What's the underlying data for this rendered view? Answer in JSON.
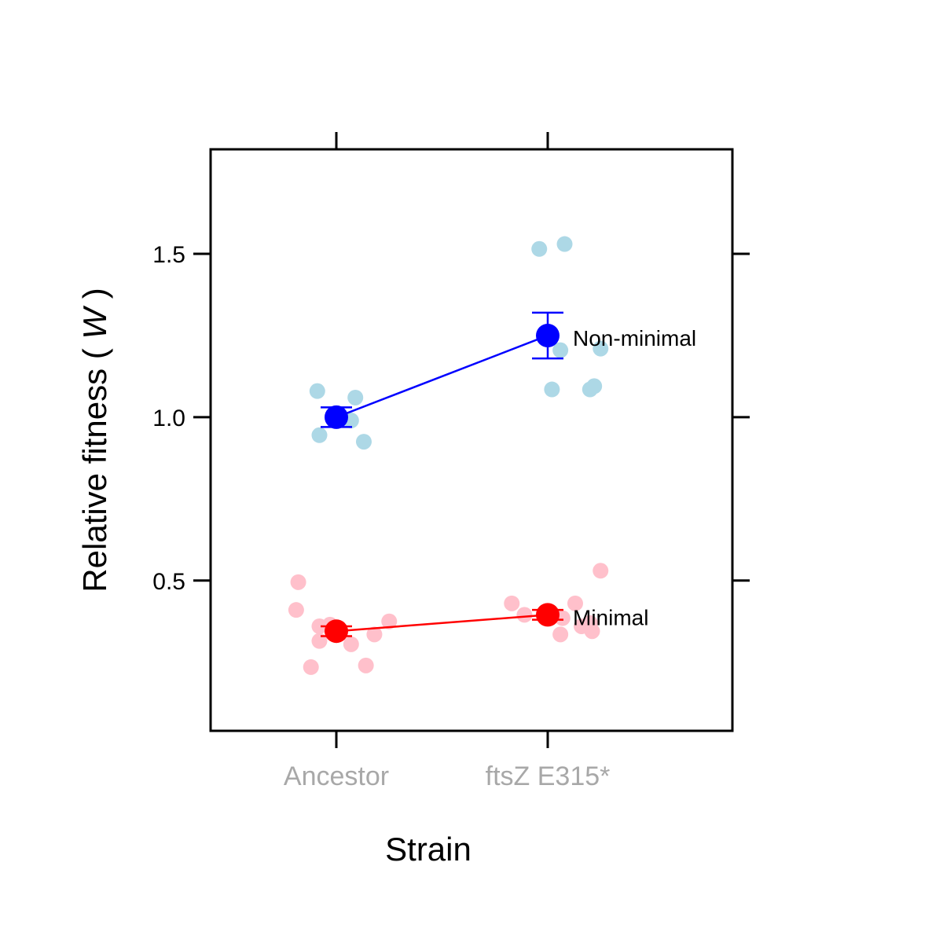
{
  "chart_data": {
    "type": "scatter",
    "xlabel": "Strain",
    "ylabel": {
      "prefix": "Relative fitness ( ",
      "symbol": "W",
      "suffix": " )"
    },
    "categories": [
      "Ancestor",
      "ftsZ E315*"
    ],
    "ylim": [
      0.04,
      1.82
    ],
    "yticks": [
      0.5,
      1.0,
      1.5
    ],
    "ytick_labels": [
      "0.5",
      "1.0",
      "1.5"
    ],
    "grid": false,
    "series": [
      {
        "name": "Non-minimal",
        "color": "#0000ff",
        "point_color": "#add8e6",
        "mean": [
          1.0,
          1.25
        ],
        "error": [
          [
            0.97,
            1.03
          ],
          [
            1.18,
            1.32
          ]
        ],
        "points": [
          {
            "category": 0,
            "jitter": -0.09,
            "value": 1.08
          },
          {
            "category": 0,
            "jitter": 0.09,
            "value": 1.06
          },
          {
            "category": 0,
            "jitter": 0.07,
            "value": 0.99
          },
          {
            "category": 0,
            "jitter": -0.08,
            "value": 0.945
          },
          {
            "category": 0,
            "jitter": 0.13,
            "value": 0.925
          },
          {
            "category": 1,
            "jitter": -0.04,
            "value": 1.515
          },
          {
            "category": 1,
            "jitter": 0.08,
            "value": 1.53
          },
          {
            "category": 1,
            "jitter": 0.06,
            "value": 1.205
          },
          {
            "category": 1,
            "jitter": 0.25,
            "value": 1.21
          },
          {
            "category": 1,
            "jitter": 0.02,
            "value": 1.085
          },
          {
            "category": 1,
            "jitter": 0.2,
            "value": 1.085
          },
          {
            "category": 1,
            "jitter": 0.22,
            "value": 1.095
          }
        ]
      },
      {
        "name": "Minimal",
        "color": "#ff0000",
        "point_color": "#ffc0cb",
        "mean": [
          0.345,
          0.395
        ],
        "error": [
          [
            0.33,
            0.36
          ],
          [
            0.38,
            0.41
          ]
        ],
        "points": [
          {
            "category": 0,
            "jitter": -0.18,
            "value": 0.495
          },
          {
            "category": 0,
            "jitter": -0.19,
            "value": 0.41
          },
          {
            "category": 0,
            "jitter": -0.08,
            "value": 0.36
          },
          {
            "category": 0,
            "jitter": -0.03,
            "value": 0.365
          },
          {
            "category": 0,
            "jitter": 0.25,
            "value": 0.375
          },
          {
            "category": 0,
            "jitter": 0.18,
            "value": 0.335
          },
          {
            "category": 0,
            "jitter": -0.08,
            "value": 0.315
          },
          {
            "category": 0,
            "jitter": 0.07,
            "value": 0.305
          },
          {
            "category": 0,
            "jitter": -0.12,
            "value": 0.235
          },
          {
            "category": 0,
            "jitter": 0.14,
            "value": 0.24
          },
          {
            "category": 1,
            "jitter": -0.17,
            "value": 0.43
          },
          {
            "category": 1,
            "jitter": -0.11,
            "value": 0.395
          },
          {
            "category": 1,
            "jitter": 0.13,
            "value": 0.43
          },
          {
            "category": 1,
            "jitter": 0.07,
            "value": 0.385
          },
          {
            "category": 1,
            "jitter": 0.16,
            "value": 0.36
          },
          {
            "category": 1,
            "jitter": 0.2,
            "value": 0.37
          },
          {
            "category": 1,
            "jitter": 0.21,
            "value": 0.345
          },
          {
            "category": 1,
            "jitter": 0.06,
            "value": 0.335
          },
          {
            "category": 1,
            "jitter": 0.25,
            "value": 0.53
          }
        ]
      }
    ]
  }
}
